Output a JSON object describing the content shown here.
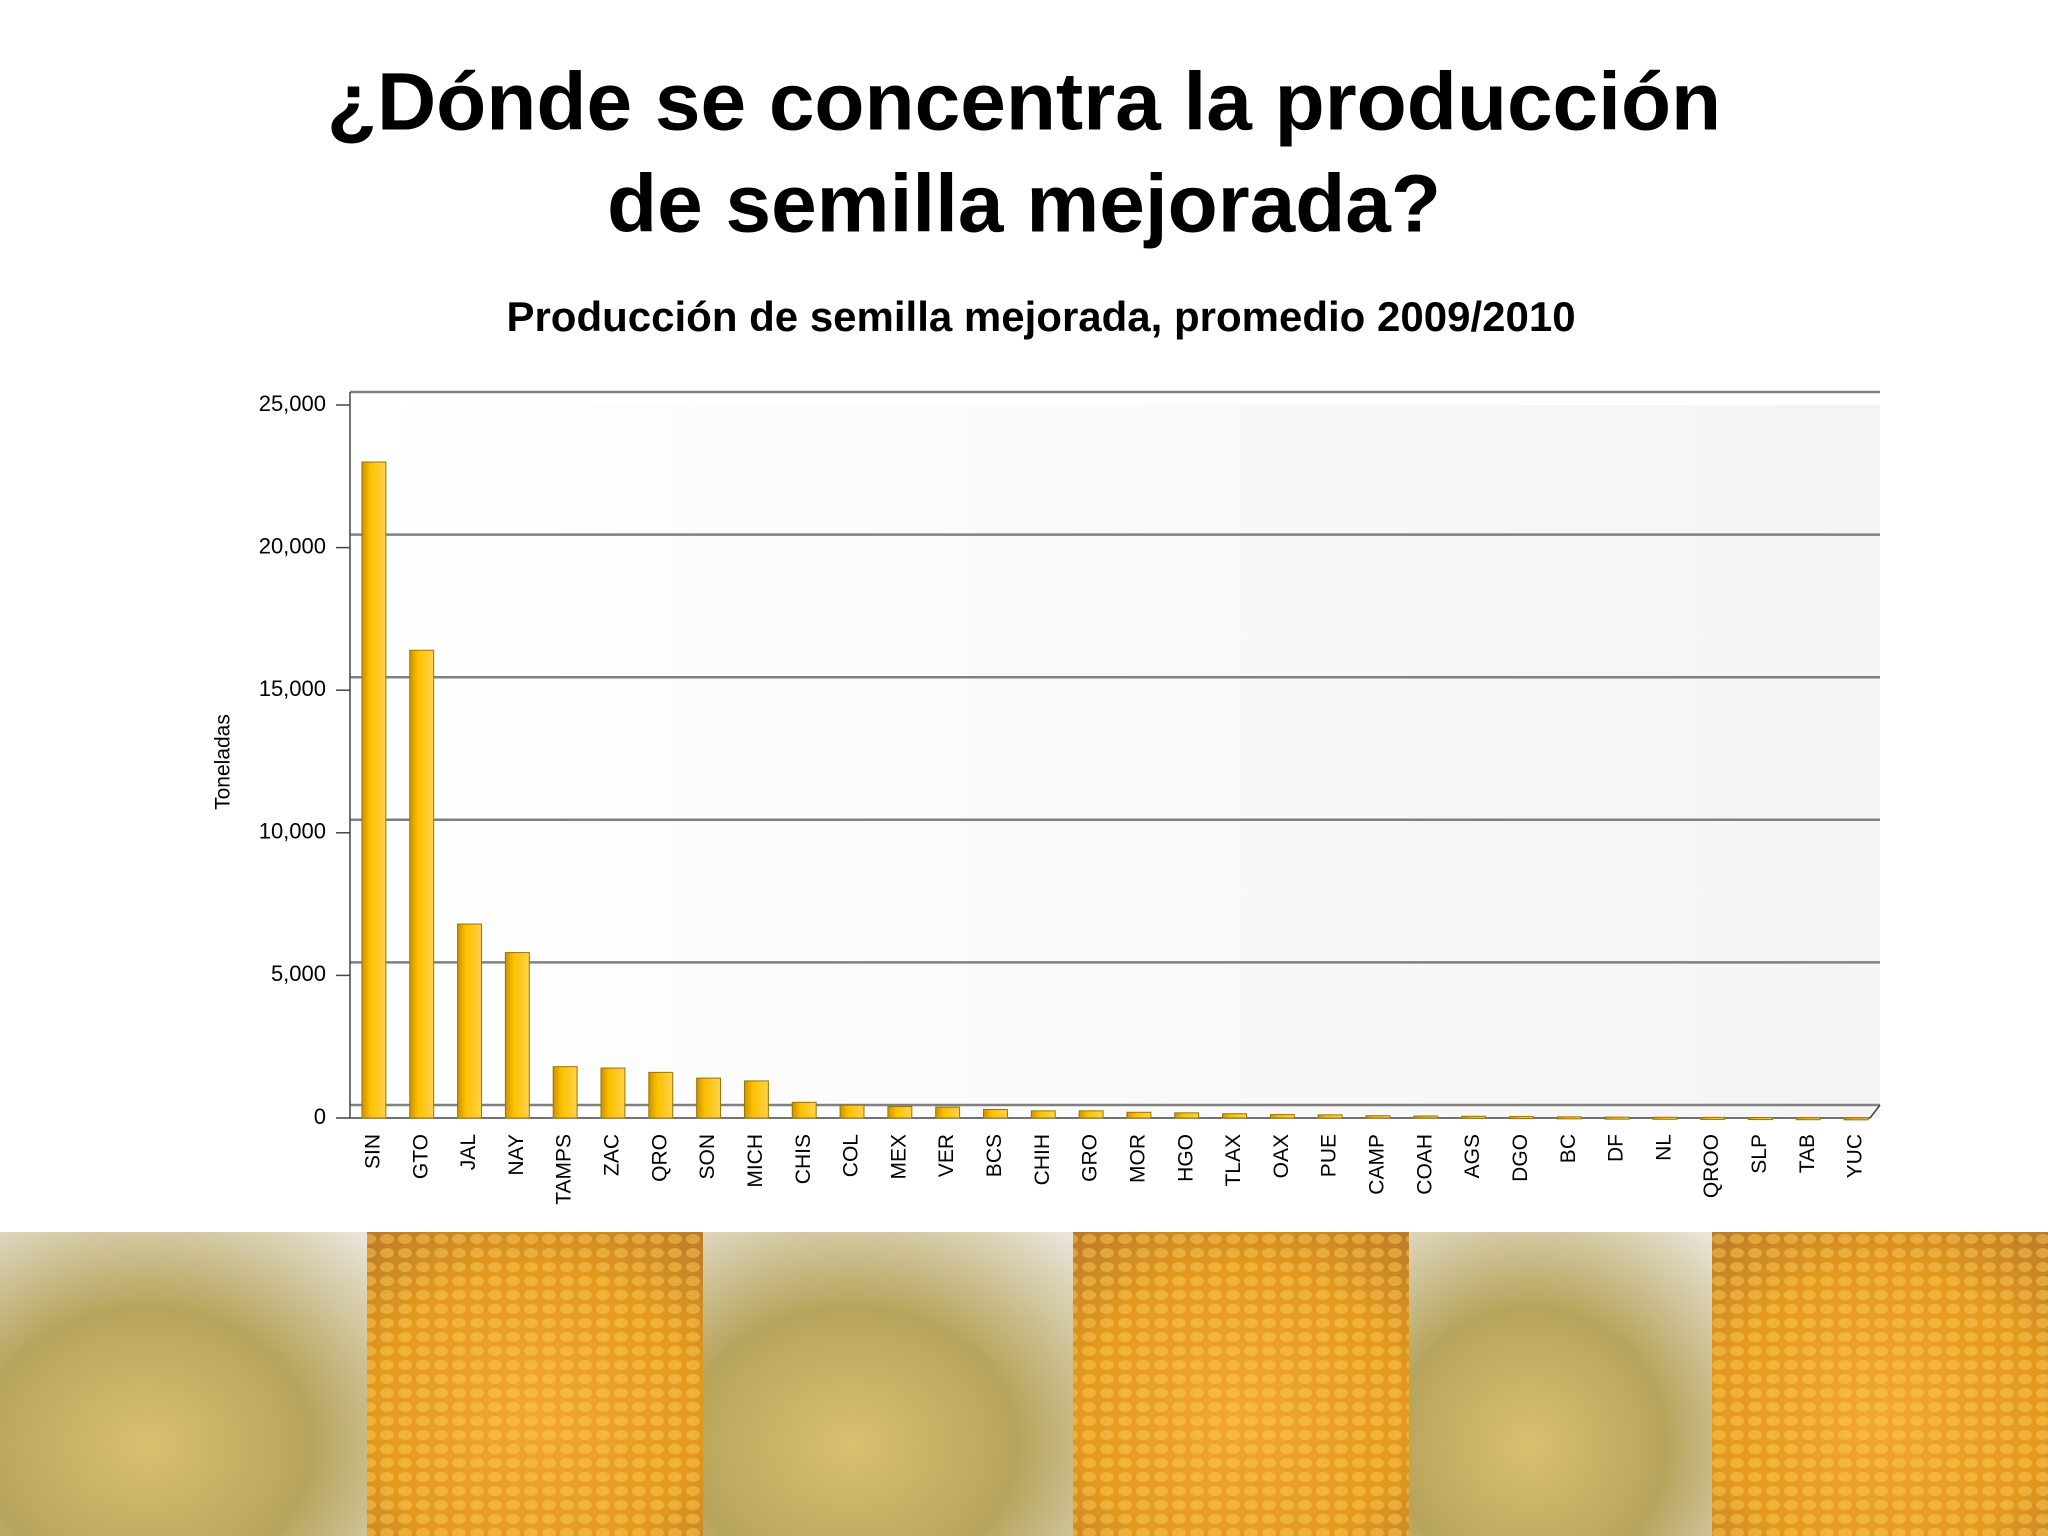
{
  "heading": [
    "¿Dónde se concentra la producción",
    "de semilla mejorada?"
  ],
  "chart_data": {
    "type": "bar",
    "title": "Producción de semilla mejorada, promedio 2009/2010",
    "y_label": "Toneladas",
    "categories": [
      "SIN",
      "GTO",
      "JAL",
      "NAY",
      "TAMPS",
      "ZAC",
      "QRO",
      "SON",
      "MICH",
      "CHIS",
      "COL",
      "MEX",
      "VER",
      "BCS",
      "CHIH",
      "GRO",
      "MOR",
      "HGO",
      "TLAX",
      "OAX",
      "PUE",
      "CAMP",
      "COAH",
      "AGS",
      "DGO",
      "BC",
      "DF",
      "NL",
      "QROO",
      "SLP",
      "TAB",
      "YUC"
    ],
    "values": [
      23000,
      16400,
      6800,
      5800,
      1800,
      1750,
      1600,
      1400,
      1300,
      550,
      450,
      400,
      380,
      300,
      250,
      250,
      200,
      180,
      150,
      120,
      110,
      80,
      70,
      60,
      50,
      40,
      30,
      25,
      20,
      15,
      10,
      5
    ],
    "color": "#ffc000",
    "ylim": [
      0,
      25000
    ],
    "yticks": [
      0,
      {
        "value": 5000,
        "label": "5,000"
      },
      {
        "value": 10000,
        "label": "10,000"
      },
      {
        "value": 15000,
        "label": "15,000"
      },
      {
        "value": 20000,
        "label": "20,000"
      },
      {
        "value": 25000,
        "label": "25,000"
      }
    ],
    "grid": true
  }
}
